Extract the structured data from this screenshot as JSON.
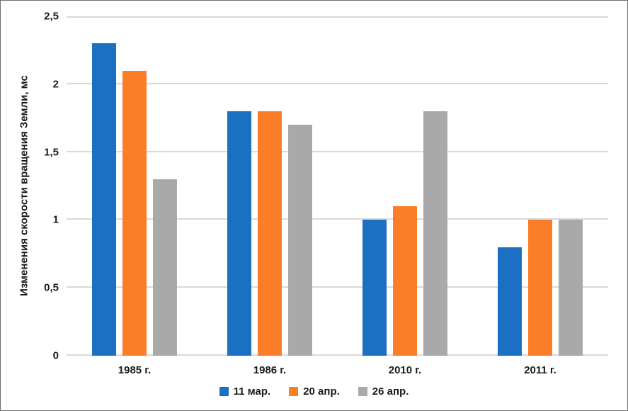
{
  "figure": {
    "background": "#FFFFFF",
    "border_color": "#6E6E6E",
    "text_color": "#1B1B1B",
    "gridline_color": "#D9D9D9"
  },
  "chart_data": {
    "type": "bar",
    "title": "",
    "xlabel": "",
    "ylabel": "Изменения скорости вращения Земли, мс",
    "categories": [
      "1985 г.",
      "1986 г.",
      "2010 г.",
      "2011 г."
    ],
    "series": [
      {
        "name": "11 мар.",
        "color": "#1C70C4",
        "values": [
          2.3,
          1.8,
          1.0,
          0.8
        ]
      },
      {
        "name": "20 апр.",
        "color": "#FB7D28",
        "values": [
          2.1,
          1.8,
          1.1,
          1.0
        ]
      },
      {
        "name": "26 апр.",
        "color": "#A9A9A9",
        "values": [
          1.3,
          1.7,
          1.8,
          1.0
        ]
      }
    ],
    "ylim": [
      0,
      2.5
    ],
    "yticks": [
      {
        "value": 0,
        "label": "0"
      },
      {
        "value": 0.5,
        "label": "0,5"
      },
      {
        "value": 1,
        "label": "1"
      },
      {
        "value": 1.5,
        "label": "1,5"
      },
      {
        "value": 2,
        "label": "2"
      },
      {
        "value": 2.5,
        "label": "2,5"
      }
    ],
    "grid": "horizontal",
    "legend_position": "bottom"
  }
}
